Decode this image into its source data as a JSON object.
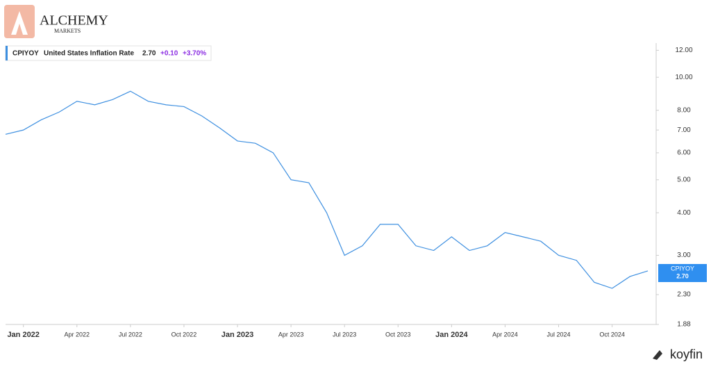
{
  "brand": {
    "name": "ALCHEMY",
    "sub": "MARKETS",
    "footer": "koyfin"
  },
  "chart_data": {
    "type": "line",
    "scale": "log",
    "grid": false,
    "legend": {
      "ticker": "CPIYOY",
      "name": "United States Inflation Rate",
      "last": "2.70",
      "change": "+0.10",
      "change_pct": "+3.70%"
    },
    "last_label": {
      "ticker": "CPIYOY",
      "value": "2.70"
    },
    "x": [
      "2021-12",
      "2022-01",
      "2022-02",
      "2022-03",
      "2022-04",
      "2022-05",
      "2022-06",
      "2022-07",
      "2022-08",
      "2022-09",
      "2022-10",
      "2022-11",
      "2022-12",
      "2023-01",
      "2023-02",
      "2023-03",
      "2023-04",
      "2023-05",
      "2023-06",
      "2023-07",
      "2023-08",
      "2023-09",
      "2023-10",
      "2023-11",
      "2023-12",
      "2024-01",
      "2024-02",
      "2024-03",
      "2024-04",
      "2024-05",
      "2024-06",
      "2024-07",
      "2024-08",
      "2024-09",
      "2024-10",
      "2024-11",
      "2024-12"
    ],
    "series": [
      {
        "name": "CPIYOY",
        "color": "#3d8fe0",
        "values": [
          6.8,
          7.0,
          7.5,
          7.9,
          8.5,
          8.3,
          8.6,
          9.1,
          8.5,
          8.3,
          8.2,
          7.7,
          7.1,
          6.5,
          6.4,
          6.0,
          5.0,
          4.9,
          4.0,
          3.0,
          3.2,
          3.7,
          3.7,
          3.2,
          3.1,
          3.4,
          3.1,
          3.2,
          3.5,
          3.4,
          3.3,
          3.0,
          2.9,
          2.5,
          2.4,
          2.6,
          2.7
        ]
      }
    ],
    "xticks": [
      {
        "value": "2022-01",
        "label": "Jan 2022"
      },
      {
        "value": "2022-04",
        "label": "Apr 2022"
      },
      {
        "value": "2022-07",
        "label": "Jul 2022"
      },
      {
        "value": "2022-10",
        "label": "Oct 2022"
      },
      {
        "value": "2023-01",
        "label": "Jan 2023"
      },
      {
        "value": "2023-04",
        "label": "Apr 2023"
      },
      {
        "value": "2023-07",
        "label": "Jul 2023"
      },
      {
        "value": "2023-10",
        "label": "Oct 2023"
      },
      {
        "value": "2024-01",
        "label": "Jan 2024"
      },
      {
        "value": "2024-04",
        "label": "Apr 2024"
      },
      {
        "value": "2024-07",
        "label": "Jul 2024"
      },
      {
        "value": "2024-10",
        "label": "Oct 2024"
      }
    ],
    "ylim": [
      1.88,
      12.6
    ],
    "yticks": [
      {
        "value": 1.88,
        "label": "1.88"
      },
      {
        "value": 2.3,
        "label": "2.30"
      },
      {
        "value": 3,
        "label": "3.00"
      },
      {
        "value": 4,
        "label": "4.00"
      },
      {
        "value": 5,
        "label": "5.00"
      },
      {
        "value": 6,
        "label": "6.00"
      },
      {
        "value": 7,
        "label": "7.00"
      },
      {
        "value": 8,
        "label": "8.00"
      },
      {
        "value": 10,
        "label": "10.00"
      },
      {
        "value": 12,
        "label": "12.00"
      }
    ]
  }
}
